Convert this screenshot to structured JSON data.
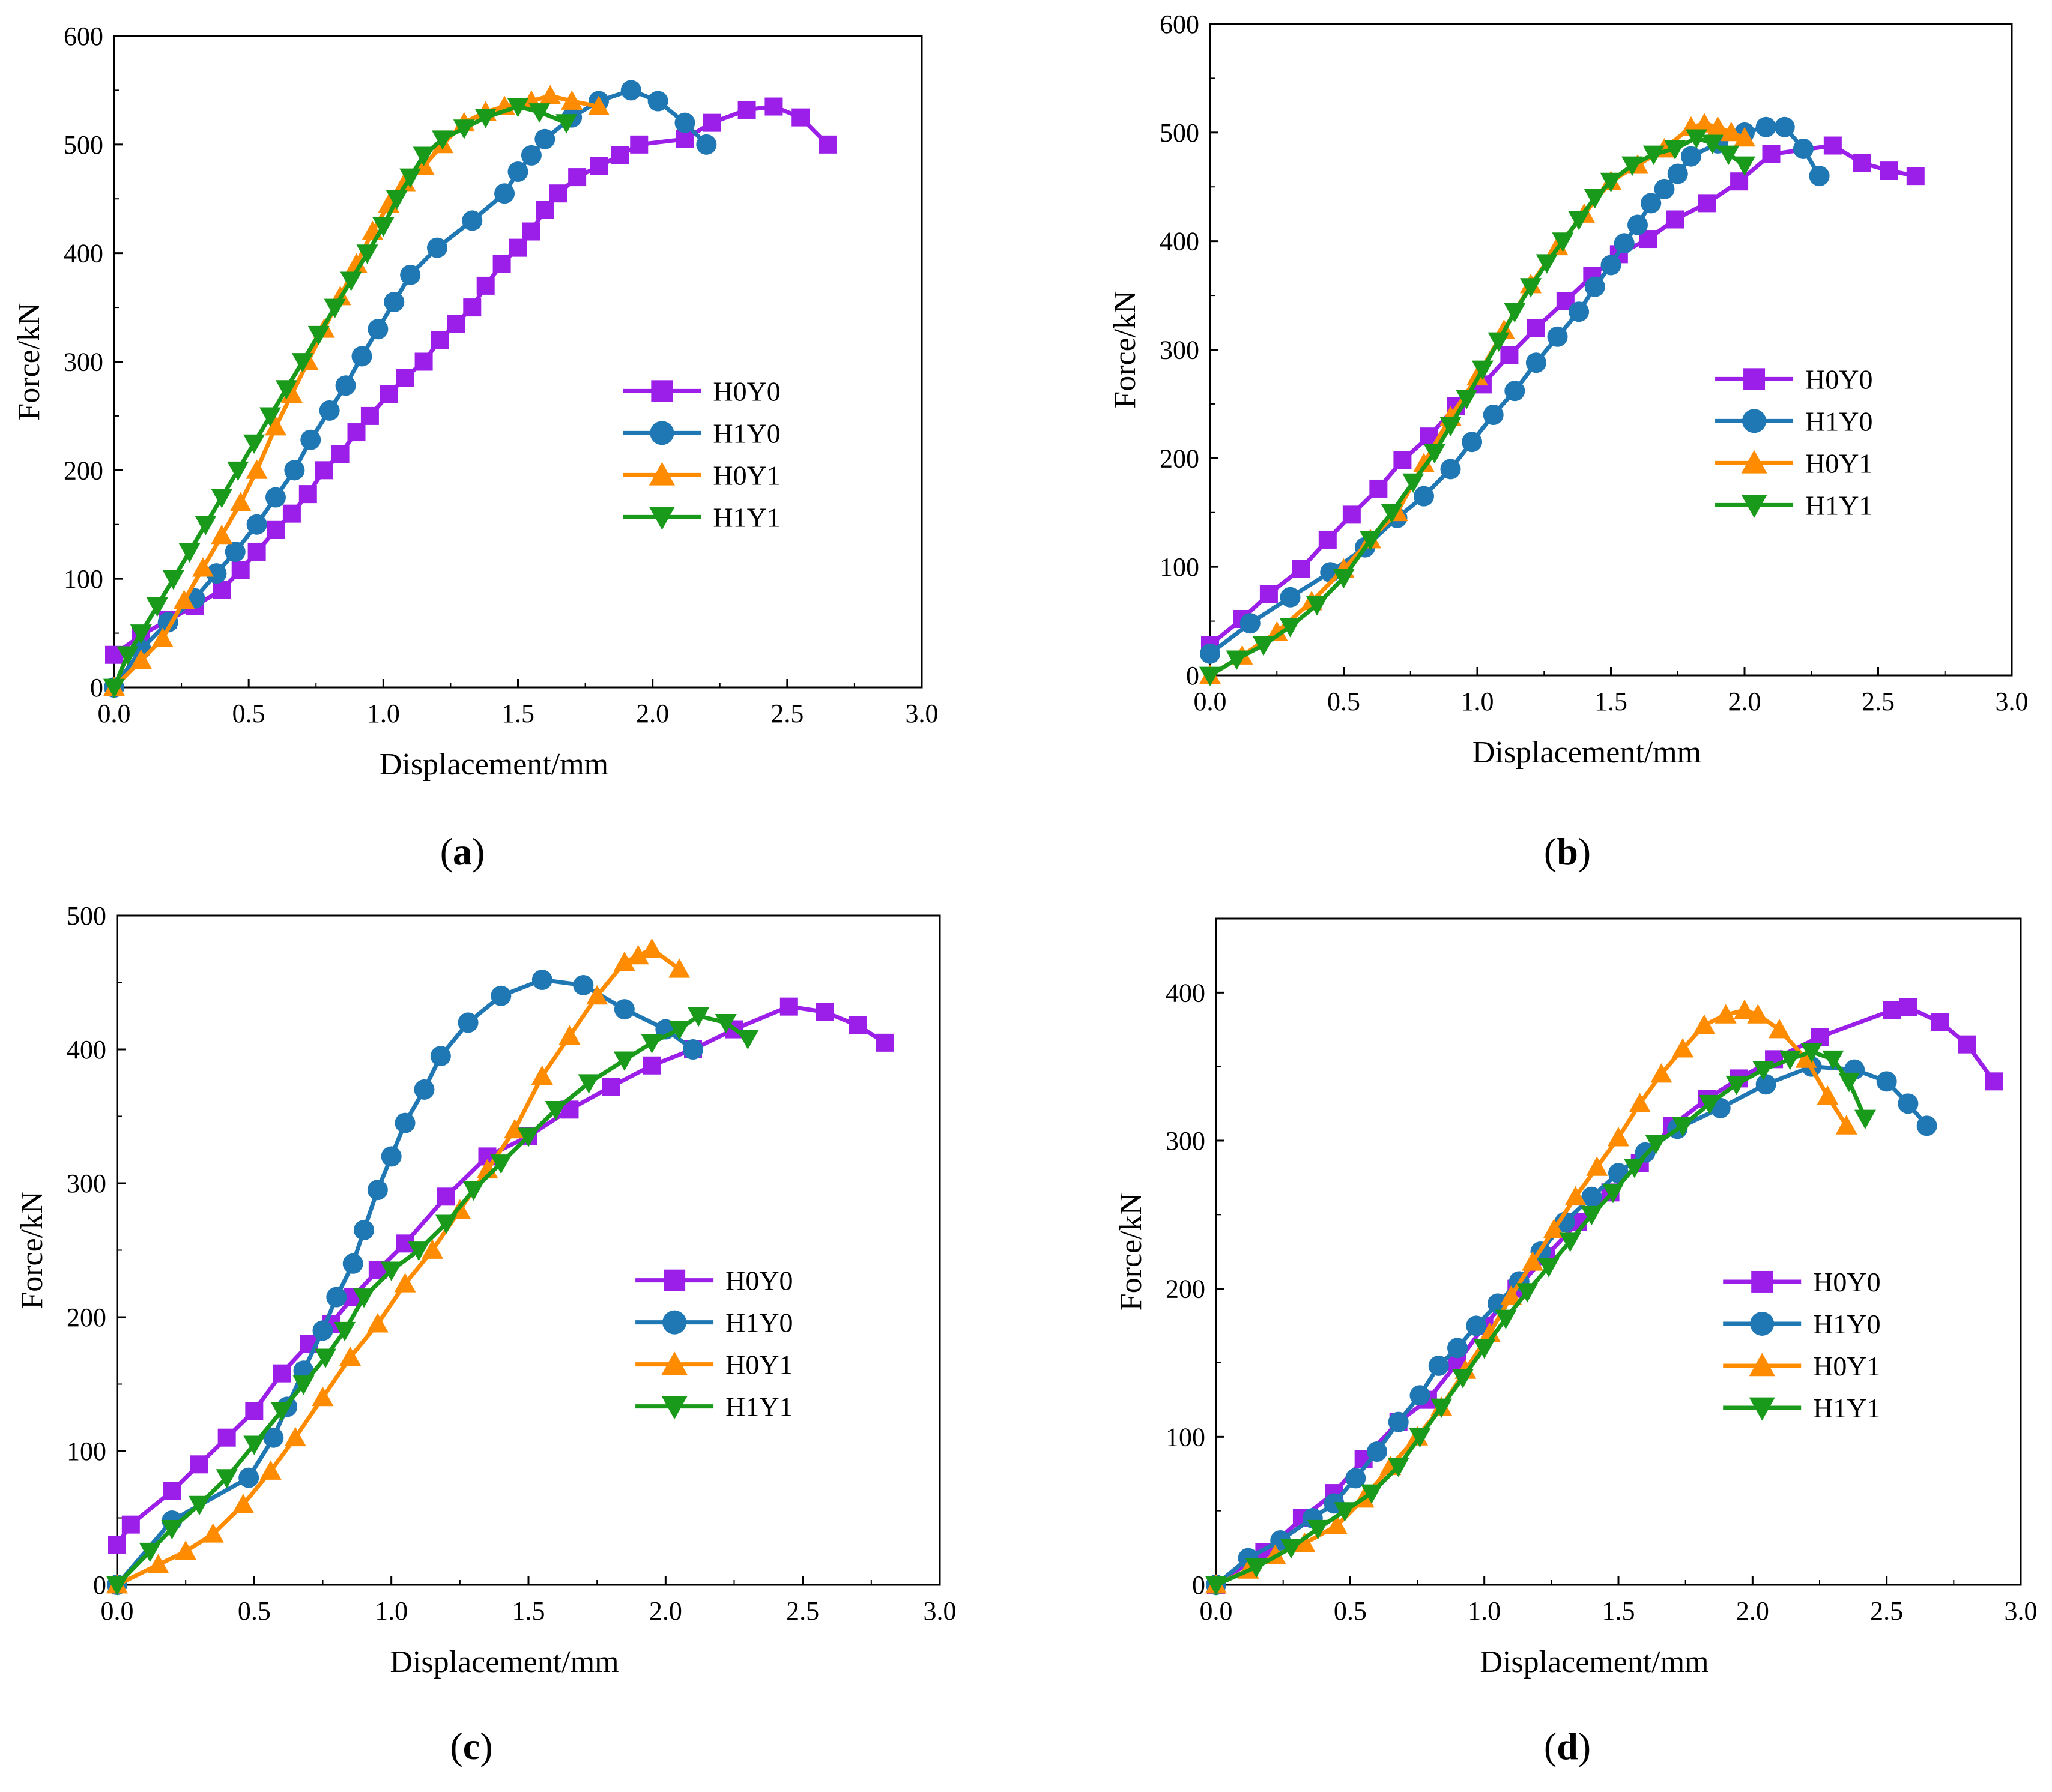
{
  "figure_description_text": [],
  "colors": {
    "H0Y0": "#9B1FE8",
    "H1Y0": "#1F77B4",
    "H0Y1": "#FF8C00",
    "H1Y1": "#1A9A1A"
  },
  "chart_data": [
    {
      "type": "line",
      "panel": "a",
      "panel_label": "a",
      "xlabel": "Displacement/mm",
      "ylabel": "Force/kN",
      "xlim": [
        0,
        3.0
      ],
      "ylim": [
        0,
        600
      ],
      "xticks": [
        "0.0",
        "0.5",
        "1.0",
        "1.5",
        "2.0",
        "2.5",
        "3.0"
      ],
      "yticks": [
        "0",
        "100",
        "200",
        "300",
        "400",
        "500",
        "600"
      ],
      "legend_position": "center-right",
      "series": [
        {
          "name": "H0Y0",
          "marker": "square",
          "color": "#9B1FE8",
          "x": [
            0.0,
            0.1,
            0.2,
            0.3,
            0.4,
            0.47,
            0.53,
            0.6,
            0.66,
            0.72,
            0.78,
            0.84,
            0.9,
            0.95,
            1.02,
            1.08,
            1.15,
            1.21,
            1.27,
            1.33,
            1.38,
            1.44,
            1.5,
            1.55,
            1.6,
            1.65,
            1.72,
            1.8,
            1.88,
            1.95,
            2.12,
            2.22,
            2.35,
            2.45,
            2.55,
            2.65
          ],
          "y": [
            30,
            48,
            62,
            75,
            90,
            108,
            125,
            145,
            160,
            178,
            200,
            215,
            235,
            250,
            270,
            285,
            300,
            320,
            335,
            350,
            370,
            390,
            405,
            420,
            440,
            455,
            470,
            480,
            490,
            500,
            505,
            520,
            532,
            535,
            525,
            500
          ]
        },
        {
          "name": "H1Y0",
          "marker": "circle",
          "color": "#1F77B4",
          "x": [
            0.0,
            0.1,
            0.2,
            0.3,
            0.38,
            0.45,
            0.53,
            0.6,
            0.67,
            0.73,
            0.8,
            0.86,
            0.92,
            0.98,
            1.04,
            1.1,
            1.2,
            1.33,
            1.45,
            1.5,
            1.55,
            1.6,
            1.7,
            1.8,
            1.92,
            2.02,
            2.12,
            2.2
          ],
          "y": [
            0,
            35,
            60,
            82,
            105,
            125,
            150,
            175,
            200,
            228,
            255,
            278,
            305,
            330,
            355,
            380,
            405,
            430,
            455,
            475,
            490,
            505,
            525,
            540,
            550,
            540,
            520,
            500
          ]
        },
        {
          "name": "H0Y1",
          "marker": "triangle-up",
          "color": "#FF8C00",
          "x": [
            0.0,
            0.1,
            0.18,
            0.26,
            0.33,
            0.4,
            0.47,
            0.53,
            0.6,
            0.66,
            0.72,
            0.78,
            0.84,
            0.9,
            0.96,
            1.02,
            1.08,
            1.15,
            1.22,
            1.3,
            1.38,
            1.45,
            1.55,
            1.62,
            1.7,
            1.8
          ],
          "y": [
            0,
            25,
            45,
            80,
            110,
            140,
            170,
            200,
            240,
            270,
            300,
            330,
            360,
            390,
            420,
            445,
            465,
            480,
            500,
            520,
            530,
            535,
            540,
            545,
            540,
            535
          ]
        },
        {
          "name": "H1Y1",
          "marker": "triangle-down",
          "color": "#1A9A1A",
          "x": [
            0.0,
            0.05,
            0.1,
            0.16,
            0.22,
            0.28,
            0.34,
            0.4,
            0.46,
            0.52,
            0.58,
            0.64,
            0.7,
            0.76,
            0.82,
            0.88,
            0.94,
            1.0,
            1.05,
            1.1,
            1.15,
            1.22,
            1.3,
            1.38,
            1.5,
            1.58,
            1.68
          ],
          "y": [
            0,
            30,
            50,
            75,
            100,
            125,
            150,
            175,
            200,
            225,
            250,
            275,
            300,
            325,
            350,
            375,
            400,
            425,
            450,
            470,
            490,
            505,
            515,
            525,
            535,
            530,
            520
          ]
        }
      ]
    },
    {
      "type": "line",
      "panel": "b",
      "panel_label": "b",
      "xlabel": "Displacement/mm",
      "ylabel": "Force/kN",
      "xlim": [
        0,
        3.0
      ],
      "ylim": [
        0,
        600
      ],
      "xticks": [
        "0.0",
        "0.5",
        "1.0",
        "1.5",
        "2.0",
        "2.5",
        "3.0"
      ],
      "yticks": [
        "0",
        "100",
        "200",
        "300",
        "400",
        "500",
        "600"
      ],
      "legend_position": "center-right",
      "series": [
        {
          "name": "H0Y0",
          "marker": "square",
          "color": "#9B1FE8",
          "x": [
            0.0,
            0.12,
            0.22,
            0.34,
            0.44,
            0.53,
            0.63,
            0.72,
            0.82,
            0.92,
            1.02,
            1.12,
            1.22,
            1.33,
            1.43,
            1.53,
            1.64,
            1.74,
            1.86,
            1.98,
            2.1,
            2.33,
            2.44,
            2.54,
            2.64
          ],
          "y": [
            28,
            52,
            75,
            98,
            125,
            148,
            172,
            198,
            220,
            248,
            268,
            295,
            320,
            345,
            368,
            388,
            402,
            420,
            435,
            455,
            480,
            488,
            472,
            465,
            460
          ]
        },
        {
          "name": "H1Y0",
          "marker": "circle",
          "color": "#1F77B4",
          "x": [
            0.0,
            0.15,
            0.3,
            0.45,
            0.58,
            0.7,
            0.8,
            0.9,
            0.98,
            1.06,
            1.14,
            1.22,
            1.3,
            1.38,
            1.44,
            1.5,
            1.55,
            1.6,
            1.65,
            1.7,
            1.75,
            1.8,
            1.9,
            2.0,
            2.08,
            2.15,
            2.22,
            2.28
          ],
          "y": [
            20,
            48,
            72,
            95,
            118,
            145,
            165,
            190,
            215,
            240,
            262,
            288,
            312,
            335,
            358,
            378,
            398,
            415,
            435,
            448,
            462,
            478,
            490,
            500,
            505,
            505,
            485,
            460
          ]
        },
        {
          "name": "H0Y1",
          "marker": "triangle-up",
          "color": "#FF8C00",
          "x": [
            0.0,
            0.12,
            0.25,
            0.38,
            0.5,
            0.6,
            0.7,
            0.8,
            0.9,
            1.0,
            1.1,
            1.2,
            1.3,
            1.4,
            1.5,
            1.6,
            1.7,
            1.8,
            1.85,
            1.9,
            1.95,
            2.0
          ],
          "y": [
            0,
            18,
            40,
            68,
            98,
            125,
            150,
            195,
            238,
            275,
            318,
            360,
            395,
            425,
            455,
            470,
            485,
            505,
            508,
            505,
            500,
            495
          ]
        },
        {
          "name": "H1Y1",
          "marker": "triangle-down",
          "color": "#1A9A1A",
          "x": [
            0.0,
            0.1,
            0.2,
            0.3,
            0.4,
            0.5,
            0.6,
            0.68,
            0.76,
            0.84,
            0.9,
            0.96,
            1.02,
            1.08,
            1.14,
            1.2,
            1.26,
            1.32,
            1.38,
            1.44,
            1.5,
            1.58,
            1.66,
            1.74,
            1.82,
            1.88,
            1.94,
            2.0
          ],
          "y": [
            0,
            15,
            28,
            45,
            65,
            90,
            125,
            150,
            178,
            205,
            230,
            255,
            282,
            308,
            335,
            358,
            380,
            400,
            420,
            440,
            455,
            470,
            480,
            485,
            495,
            490,
            480,
            470
          ]
        }
      ]
    },
    {
      "type": "line",
      "panel": "c",
      "panel_label": "c",
      "xlabel": "Displacement/mm",
      "ylabel": "Force/kN",
      "xlim": [
        0,
        3.0
      ],
      "ylim": [
        0,
        500
      ],
      "xticks": [
        "0.0",
        "0.5",
        "1.0",
        "1.5",
        "2.0",
        "2.5",
        "3.0"
      ],
      "yticks": [
        "0",
        "100",
        "200",
        "300",
        "400",
        "500"
      ],
      "legend_position": "center-right",
      "series": [
        {
          "name": "H0Y0",
          "marker": "square",
          "color": "#9B1FE8",
          "x": [
            0.0,
            0.05,
            0.2,
            0.3,
            0.4,
            0.5,
            0.6,
            0.7,
            0.78,
            0.86,
            0.95,
            1.05,
            1.2,
            1.35,
            1.5,
            1.65,
            1.8,
            1.95,
            2.1,
            2.25,
            2.45,
            2.58,
            2.7,
            2.8
          ],
          "y": [
            30,
            45,
            70,
            90,
            110,
            130,
            158,
            180,
            195,
            215,
            235,
            255,
            290,
            320,
            335,
            355,
            372,
            388,
            400,
            415,
            432,
            428,
            418,
            405
          ]
        },
        {
          "name": "H1Y0",
          "marker": "circle",
          "color": "#1F77B4",
          "x": [
            0.0,
            0.2,
            0.48,
            0.57,
            0.62,
            0.68,
            0.75,
            0.8,
            0.86,
            0.9,
            0.95,
            1.0,
            1.05,
            1.12,
            1.18,
            1.28,
            1.4,
            1.55,
            1.7,
            1.85,
            2.0,
            2.1
          ],
          "y": [
            0,
            48,
            80,
            110,
            133,
            160,
            190,
            215,
            240,
            265,
            295,
            320,
            345,
            370,
            395,
            420,
            440,
            452,
            448,
            430,
            415,
            400
          ]
        },
        {
          "name": "H0Y1",
          "marker": "triangle-up",
          "color": "#FF8C00",
          "x": [
            0.0,
            0.15,
            0.25,
            0.35,
            0.46,
            0.56,
            0.65,
            0.75,
            0.85,
            0.95,
            1.05,
            1.15,
            1.25,
            1.35,
            1.45,
            1.55,
            1.65,
            1.75,
            1.85,
            1.9,
            1.95,
            2.05
          ],
          "y": [
            0,
            15,
            25,
            38,
            60,
            85,
            110,
            140,
            170,
            195,
            225,
            250,
            280,
            310,
            340,
            380,
            410,
            440,
            465,
            470,
            475,
            460
          ]
        },
        {
          "name": "H1Y1",
          "marker": "triangle-down",
          "color": "#1A9A1A",
          "x": [
            0.0,
            0.12,
            0.2,
            0.3,
            0.4,
            0.5,
            0.6,
            0.68,
            0.76,
            0.83,
            0.9,
            1.0,
            1.1,
            1.2,
            1.3,
            1.4,
            1.5,
            1.6,
            1.72,
            1.85,
            1.95,
            2.05,
            2.12,
            2.22,
            2.3
          ],
          "y": [
            0,
            25,
            42,
            60,
            80,
            105,
            130,
            150,
            170,
            190,
            215,
            235,
            250,
            270,
            295,
            315,
            335,
            355,
            375,
            392,
            405,
            415,
            425,
            420,
            408
          ]
        }
      ]
    },
    {
      "type": "line",
      "panel": "d",
      "panel_label": "d",
      "xlabel": "Displacement/mm",
      "ylabel": "Force/kN",
      "xlim": [
        0,
        3.0
      ],
      "ylim": [
        0,
        450
      ],
      "xticks": [
        "0.0",
        "0.5",
        "1.0",
        "1.5",
        "2.0",
        "2.5",
        "3.0"
      ],
      "yticks": [
        "0",
        "100",
        "200",
        "300",
        "400"
      ],
      "legend_position": "center-right",
      "series": [
        {
          "name": "H0Y0",
          "marker": "square",
          "color": "#9B1FE8",
          "x": [
            0.0,
            0.18,
            0.32,
            0.44,
            0.55,
            0.68,
            0.79,
            0.9,
            1.0,
            1.12,
            1.23,
            1.35,
            1.47,
            1.58,
            1.7,
            1.83,
            1.95,
            2.08,
            2.25,
            2.52,
            2.58,
            2.7,
            2.8,
            2.9
          ],
          "y": [
            0,
            22,
            45,
            62,
            85,
            110,
            125,
            150,
            175,
            200,
            222,
            245,
            265,
            285,
            310,
            328,
            342,
            355,
            370,
            388,
            390,
            380,
            365,
            340
          ]
        },
        {
          "name": "H1Y0",
          "marker": "circle",
          "color": "#1F77B4",
          "x": [
            0.0,
            0.12,
            0.24,
            0.36,
            0.44,
            0.52,
            0.6,
            0.68,
            0.76,
            0.83,
            0.9,
            0.97,
            1.05,
            1.13,
            1.21,
            1.3,
            1.4,
            1.5,
            1.6,
            1.72,
            1.88,
            2.05,
            2.22,
            2.38,
            2.5,
            2.58,
            2.65
          ],
          "y": [
            0,
            18,
            30,
            45,
            55,
            72,
            90,
            110,
            128,
            148,
            160,
            175,
            190,
            205,
            225,
            245,
            262,
            278,
            292,
            308,
            322,
            338,
            350,
            348,
            340,
            325,
            310
          ]
        },
        {
          "name": "H0Y1",
          "marker": "triangle-up",
          "color": "#FF8C00",
          "x": [
            0.0,
            0.12,
            0.22,
            0.33,
            0.45,
            0.55,
            0.65,
            0.75,
            0.84,
            0.93,
            1.02,
            1.1,
            1.18,
            1.26,
            1.34,
            1.42,
            1.5,
            1.58,
            1.66,
            1.74,
            1.82,
            1.9,
            1.97,
            2.02,
            2.1,
            2.2,
            2.28,
            2.35
          ],
          "y": [
            0,
            10,
            20,
            28,
            40,
            58,
            80,
            100,
            120,
            145,
            170,
            195,
            218,
            240,
            262,
            282,
            302,
            325,
            345,
            362,
            378,
            385,
            388,
            385,
            375,
            355,
            330,
            310
          ]
        },
        {
          "name": "H1Y1",
          "marker": "triangle-down",
          "color": "#1A9A1A",
          "x": [
            0.0,
            0.15,
            0.28,
            0.38,
            0.48,
            0.58,
            0.68,
            0.76,
            0.84,
            0.92,
            1.0,
            1.08,
            1.16,
            1.24,
            1.32,
            1.4,
            1.48,
            1.56,
            1.64,
            1.74,
            1.84,
            1.94,
            2.04,
            2.14,
            2.22,
            2.3,
            2.36,
            2.42
          ],
          "y": [
            0,
            12,
            25,
            38,
            50,
            62,
            80,
            100,
            120,
            140,
            160,
            180,
            198,
            215,
            232,
            250,
            265,
            282,
            298,
            310,
            325,
            338,
            348,
            355,
            360,
            355,
            340,
            315
          ]
        }
      ]
    }
  ]
}
